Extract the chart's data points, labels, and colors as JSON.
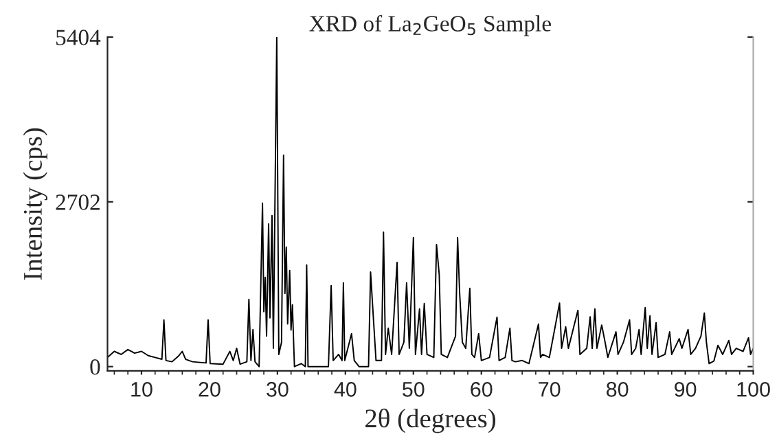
{
  "chart_data": {
    "type": "line",
    "title": "XRD of La$_{2}$GeO$_{5}$ Sample",
    "xlabel": "2θ (degrees)",
    "ylabel": "Intensity (cps)",
    "xlim": [
      5,
      100
    ],
    "xticks": [
      10,
      20,
      30,
      40,
      50,
      60,
      70,
      80,
      90,
      100
    ],
    "ylim": [
      -70,
      5404
    ],
    "yticks": [
      0,
      2702,
      5404
    ],
    "grid": false,
    "legend": false,
    "series": [
      {
        "color": "#000000",
        "x": [
          5,
          6,
          7,
          8,
          9,
          10,
          11,
          12,
          13,
          13.3,
          13.6,
          14.5,
          15.5,
          16,
          16.5,
          17.5,
          19.5,
          19.8,
          20.1,
          22,
          23,
          23.5,
          24,
          24.5,
          25.5,
          25.8,
          26.1,
          26.4,
          26.7,
          27.3,
          27.8,
          28.0,
          28.2,
          28.4,
          28.7,
          28.9,
          29.2,
          29.4,
          29.9,
          30.2,
          30.6,
          30.9,
          31.1,
          31.3,
          31.5,
          31.8,
          32.0,
          32.2,
          32.5,
          33.5,
          34.1,
          34.3,
          34.5,
          37.5,
          37.9,
          38.2,
          39,
          39.5,
          39.7,
          39.9,
          40.9,
          41.3,
          42,
          43.4,
          43.7,
          44,
          44.5,
          45.3,
          45.6,
          45.9,
          46.3,
          46.8,
          47.6,
          47.9,
          48.6,
          49,
          49.4,
          50.0,
          50.3,
          50.9,
          51.2,
          51.6,
          52,
          53,
          53.4,
          53.8,
          54.1,
          55,
          56.2,
          56.5,
          56.8,
          57.2,
          57.7,
          58.3,
          58.6,
          59,
          59.6,
          60,
          61.2,
          62.3,
          62.6,
          63.5,
          64.2,
          64.5,
          65,
          66,
          67,
          68.4,
          68.7,
          69,
          70,
          71.5,
          71.8,
          72.4,
          72.8,
          74.2,
          74.5,
          75.5,
          76.0,
          76.3,
          76.7,
          77.0,
          77.7,
          78.2,
          78.6,
          79.8,
          80.1,
          80.9,
          81.8,
          82.1,
          82.7,
          83.2,
          83.5,
          84.1,
          84.4,
          84.8,
          85.1,
          85.7,
          86.0,
          87.0,
          87.7,
          88.0,
          89.1,
          89.5,
          90.4,
          90.8,
          91.5,
          92.3,
          92.8,
          93.1,
          93.5,
          94.2,
          94.8,
          95.5,
          96.4,
          96.8,
          97.5,
          98.5,
          99.3,
          99.6,
          100
        ],
        "values": [
          150,
          250,
          200,
          280,
          220,
          250,
          180,
          150,
          120,
          765,
          100,
          80,
          180,
          250,
          120,
          80,
          60,
          765,
          50,
          40,
          250,
          100,
          300,
          40,
          80,
          1103,
          100,
          608,
          80,
          0,
          2680,
          900,
          1463,
          500,
          2340,
          800,
          2477,
          300,
          5404,
          200,
          400,
          3467,
          1200,
          1960,
          700,
          1576,
          600,
          1013,
          0,
          50,
          0,
          1666,
          0,
          0,
          1328,
          100,
          200,
          100,
          1373,
          100,
          540,
          100,
          0,
          0,
          1550,
          1000,
          100,
          100,
          2205,
          200,
          630,
          200,
          1710,
          200,
          400,
          1373,
          300,
          2116,
          200,
          945,
          200,
          1036,
          200,
          150,
          2003,
          1508,
          200,
          150,
          500,
          2116,
          1216,
          400,
          300,
          1283,
          200,
          150,
          540,
          100,
          150,
          810,
          100,
          150,
          630,
          100,
          80,
          100,
          50,
          697,
          150,
          200,
          150,
          1042,
          300,
          652,
          300,
          922,
          200,
          300,
          817,
          300,
          945,
          300,
          682,
          400,
          150,
          570,
          200,
          400,
          765,
          200,
          300,
          608,
          200,
          968,
          300,
          832,
          200,
          720,
          150,
          200,
          570,
          200,
          457,
          300,
          608,
          200,
          300,
          500,
          878,
          400,
          50,
          90,
          350,
          200,
          428,
          200,
          300,
          250,
          473,
          200,
          300
        ]
      }
    ]
  }
}
